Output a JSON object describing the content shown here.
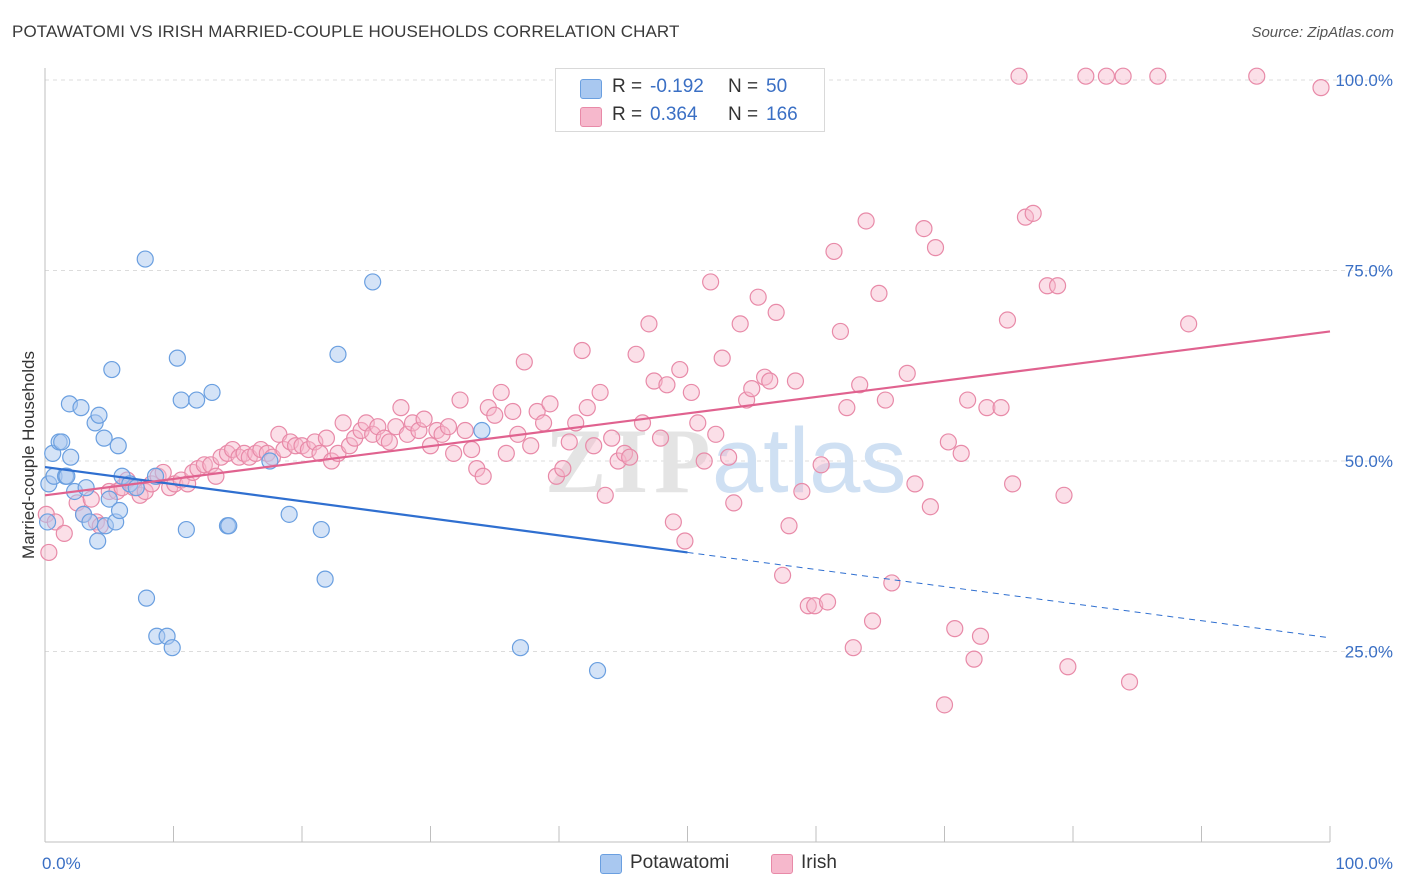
{
  "title": "POTAWATOMI VS IRISH MARRIED-COUPLE HOUSEHOLDS CORRELATION CHART",
  "source": "Source: ZipAtlas.com",
  "watermark": {
    "zip": "ZIP",
    "atlas": "atlas"
  },
  "colors": {
    "potawatomi_fill": "#a9c8f0",
    "potawatomi_stroke": "#6a9fe0",
    "potawatomi_line": "#2f6fd0",
    "irish_fill": "#f6b8cc",
    "irish_stroke": "#e88aa8",
    "irish_line": "#e0628f",
    "axis_label": "#3a6fc4",
    "grid": "#dcdcdc"
  },
  "legend": {
    "rows": [
      {
        "r_label": "R =",
        "r_value": "-0.192",
        "n_label": "N =",
        "n_value": "50",
        "series": "Potawatomi"
      },
      {
        "r_label": "R =",
        "r_value": "0.364",
        "n_label": "N =",
        "n_value": "166",
        "series": "Irish"
      }
    ]
  },
  "bottom_legend": [
    "Potawatomi",
    "Irish"
  ],
  "chart_data": {
    "type": "scatter",
    "title": "POTAWATOMI VS IRISH MARRIED-COUPLE HOUSEHOLDS CORRELATION CHART",
    "xlabel": "",
    "ylabel": "Married-couple Households",
    "xlim": [
      0,
      100
    ],
    "ylim": [
      0,
      102
    ],
    "x_tick_labels": [
      "0.0%",
      "100.0%"
    ],
    "y_ticks": [
      25,
      50,
      75,
      100
    ],
    "y_tick_labels": [
      "25.0%",
      "50.0%",
      "75.0%",
      "100.0%"
    ],
    "grid": "horizontal dashed",
    "legend_placement": "top-center",
    "series": [
      {
        "name": "Potawatomi",
        "r": -0.192,
        "n": 50,
        "trend": {
          "x": [
            0,
            50,
            100
          ],
          "y": [
            49.2,
            38.0,
            26.8
          ],
          "solid_until_x": 50
        },
        "points": [
          [
            0.2,
            42.0
          ],
          [
            0.3,
            47.0
          ],
          [
            0.6,
            51.0
          ],
          [
            0.7,
            48.0
          ],
          [
            1.1,
            52.5
          ],
          [
            1.3,
            52.5
          ],
          [
            1.6,
            48.0
          ],
          [
            1.7,
            48.0
          ],
          [
            1.9,
            57.5
          ],
          [
            2.0,
            50.5
          ],
          [
            2.3,
            46.0
          ],
          [
            2.8,
            57.0
          ],
          [
            3.0,
            43.0
          ],
          [
            3.2,
            46.5
          ],
          [
            3.5,
            42.0
          ],
          [
            3.9,
            55.0
          ],
          [
            4.1,
            39.5
          ],
          [
            4.2,
            56.0
          ],
          [
            4.6,
            53.0
          ],
          [
            4.7,
            41.5
          ],
          [
            5.0,
            45.0
          ],
          [
            5.2,
            62.0
          ],
          [
            5.5,
            42.0
          ],
          [
            5.7,
            52.0
          ],
          [
            5.8,
            43.5
          ],
          [
            6.0,
            48.0
          ],
          [
            6.6,
            47.0
          ],
          [
            7.1,
            46.5
          ],
          [
            7.8,
            76.5
          ],
          [
            7.9,
            32.0
          ],
          [
            8.6,
            48.0
          ],
          [
            8.7,
            27.0
          ],
          [
            9.5,
            27.0
          ],
          [
            9.9,
            25.5
          ],
          [
            10.3,
            63.5
          ],
          [
            10.6,
            58.0
          ],
          [
            11.0,
            41.0
          ],
          [
            11.8,
            58.0
          ],
          [
            13.0,
            59.0
          ],
          [
            14.2,
            41.5
          ],
          [
            14.3,
            41.5
          ],
          [
            17.5,
            50.0
          ],
          [
            19.0,
            43.0
          ],
          [
            21.5,
            41.0
          ],
          [
            21.8,
            34.5
          ],
          [
            22.8,
            64.0
          ],
          [
            25.5,
            73.5
          ],
          [
            34.0,
            54.0
          ],
          [
            37.0,
            25.5
          ],
          [
            43.0,
            22.5
          ]
        ]
      },
      {
        "name": "Irish",
        "r": 0.364,
        "n": 166,
        "trend": {
          "x": [
            0,
            100
          ],
          "y": [
            45.5,
            67.0
          ]
        },
        "points": [
          [
            0.1,
            43.0
          ],
          [
            0.3,
            38.0
          ],
          [
            0.8,
            42.0
          ],
          [
            1.5,
            40.5
          ],
          [
            2.5,
            44.5
          ],
          [
            3.0,
            43.0
          ],
          [
            3.6,
            45.0
          ],
          [
            4.0,
            42.0
          ],
          [
            4.3,
            41.5
          ],
          [
            5.0,
            46.0
          ],
          [
            5.6,
            46.0
          ],
          [
            6.0,
            46.5
          ],
          [
            6.4,
            47.5
          ],
          [
            6.9,
            46.5
          ],
          [
            7.4,
            45.5
          ],
          [
            7.8,
            46.0
          ],
          [
            8.3,
            47.0
          ],
          [
            8.8,
            48.0
          ],
          [
            9.2,
            48.5
          ],
          [
            9.7,
            46.5
          ],
          [
            10.1,
            47.0
          ],
          [
            10.6,
            47.5
          ],
          [
            11.1,
            47.0
          ],
          [
            11.5,
            48.5
          ],
          [
            11.9,
            49.0
          ],
          [
            12.4,
            49.5
          ],
          [
            12.9,
            49.5
          ],
          [
            13.3,
            48.0
          ],
          [
            13.7,
            50.5
          ],
          [
            14.2,
            51.0
          ],
          [
            14.6,
            51.5
          ],
          [
            15.1,
            50.5
          ],
          [
            15.5,
            51.0
          ],
          [
            15.9,
            50.5
          ],
          [
            16.4,
            51.0
          ],
          [
            16.8,
            51.5
          ],
          [
            17.3,
            51.0
          ],
          [
            17.7,
            50.5
          ],
          [
            18.2,
            53.5
          ],
          [
            18.6,
            51.5
          ],
          [
            19.1,
            52.5
          ],
          [
            19.5,
            52.0
          ],
          [
            20.0,
            52.0
          ],
          [
            20.5,
            51.5
          ],
          [
            21.0,
            52.5
          ],
          [
            21.4,
            51.0
          ],
          [
            21.9,
            53.0
          ],
          [
            22.3,
            50.0
          ],
          [
            22.8,
            51.0
          ],
          [
            23.2,
            55.0
          ],
          [
            23.7,
            52.0
          ],
          [
            24.1,
            53.0
          ],
          [
            24.6,
            54.0
          ],
          [
            25.0,
            55.0
          ],
          [
            25.5,
            53.5
          ],
          [
            25.9,
            54.5
          ],
          [
            26.4,
            53.0
          ],
          [
            26.8,
            52.5
          ],
          [
            27.3,
            54.5
          ],
          [
            27.7,
            57.0
          ],
          [
            28.2,
            53.5
          ],
          [
            28.6,
            55.0
          ],
          [
            29.1,
            54.0
          ],
          [
            29.5,
            55.5
          ],
          [
            30.0,
            52.0
          ],
          [
            30.5,
            54.0
          ],
          [
            30.9,
            53.5
          ],
          [
            31.4,
            54.5
          ],
          [
            31.8,
            51.0
          ],
          [
            32.3,
            58.0
          ],
          [
            32.7,
            54.0
          ],
          [
            33.2,
            51.5
          ],
          [
            33.6,
            49.0
          ],
          [
            34.1,
            48.0
          ],
          [
            34.5,
            57.0
          ],
          [
            35.0,
            56.0
          ],
          [
            35.5,
            59.0
          ],
          [
            35.9,
            51.0
          ],
          [
            36.4,
            56.5
          ],
          [
            36.8,
            53.5
          ],
          [
            37.3,
            63.0
          ],
          [
            37.8,
            52.0
          ],
          [
            38.3,
            56.5
          ],
          [
            38.8,
            55.0
          ],
          [
            39.3,
            57.5
          ],
          [
            39.8,
            48.0
          ],
          [
            40.3,
            49.0
          ],
          [
            40.8,
            52.5
          ],
          [
            41.3,
            55.0
          ],
          [
            41.8,
            64.5
          ],
          [
            42.2,
            57.0
          ],
          [
            42.7,
            52.0
          ],
          [
            43.2,
            59.0
          ],
          [
            43.6,
            45.5
          ],
          [
            44.1,
            53.0
          ],
          [
            44.6,
            50.0
          ],
          [
            45.1,
            51.0
          ],
          [
            45.5,
            50.5
          ],
          [
            46.0,
            64.0
          ],
          [
            46.5,
            55.0
          ],
          [
            47.0,
            68.0
          ],
          [
            47.4,
            60.5
          ],
          [
            47.9,
            53.0
          ],
          [
            48.4,
            60.0
          ],
          [
            48.9,
            42.0
          ],
          [
            49.4,
            62.0
          ],
          [
            49.8,
            39.5
          ],
          [
            50.3,
            59.0
          ],
          [
            50.8,
            55.0
          ],
          [
            51.3,
            50.0
          ],
          [
            51.8,
            73.5
          ],
          [
            52.2,
            53.5
          ],
          [
            52.7,
            63.5
          ],
          [
            53.2,
            50.5
          ],
          [
            53.6,
            44.5
          ],
          [
            54.1,
            68.0
          ],
          [
            54.6,
            58.0
          ],
          [
            55.0,
            59.5
          ],
          [
            55.5,
            71.5
          ],
          [
            56.0,
            61.0
          ],
          [
            56.4,
            60.5
          ],
          [
            56.9,
            69.5
          ],
          [
            57.4,
            35.0
          ],
          [
            57.9,
            41.5
          ],
          [
            58.4,
            60.5
          ],
          [
            58.9,
            46.0
          ],
          [
            59.4,
            31.0
          ],
          [
            59.9,
            31.0
          ],
          [
            60.4,
            49.5
          ],
          [
            60.9,
            31.5
          ],
          [
            61.4,
            77.5
          ],
          [
            61.9,
            67.0
          ],
          [
            62.4,
            57.0
          ],
          [
            62.9,
            25.5
          ],
          [
            63.4,
            60.0
          ],
          [
            63.9,
            81.5
          ],
          [
            64.4,
            29.0
          ],
          [
            64.9,
            72.0
          ],
          [
            65.4,
            58.0
          ],
          [
            65.9,
            34.0
          ],
          [
            67.1,
            61.5
          ],
          [
            67.7,
            47.0
          ],
          [
            68.4,
            80.5
          ],
          [
            68.9,
            44.0
          ],
          [
            69.3,
            78.0
          ],
          [
            70.0,
            18.0
          ],
          [
            70.3,
            52.5
          ],
          [
            70.8,
            28.0
          ],
          [
            71.3,
            51.0
          ],
          [
            71.8,
            58.0
          ],
          [
            72.3,
            24.0
          ],
          [
            72.8,
            27.0
          ],
          [
            73.3,
            57.0
          ],
          [
            74.4,
            57.0
          ],
          [
            74.9,
            68.5
          ],
          [
            75.3,
            47.0
          ],
          [
            75.8,
            100.5
          ],
          [
            76.3,
            82.0
          ],
          [
            76.9,
            82.5
          ],
          [
            78.0,
            73.0
          ],
          [
            78.8,
            73.0
          ],
          [
            79.3,
            45.5
          ],
          [
            79.6,
            23.0
          ],
          [
            81.0,
            100.5
          ],
          [
            82.6,
            100.5
          ],
          [
            83.9,
            100.5
          ],
          [
            84.4,
            21.0
          ],
          [
            86.6,
            100.5
          ],
          [
            89.0,
            68.0
          ],
          [
            94.3,
            100.5
          ],
          [
            99.3,
            99.0
          ]
        ]
      }
    ]
  }
}
